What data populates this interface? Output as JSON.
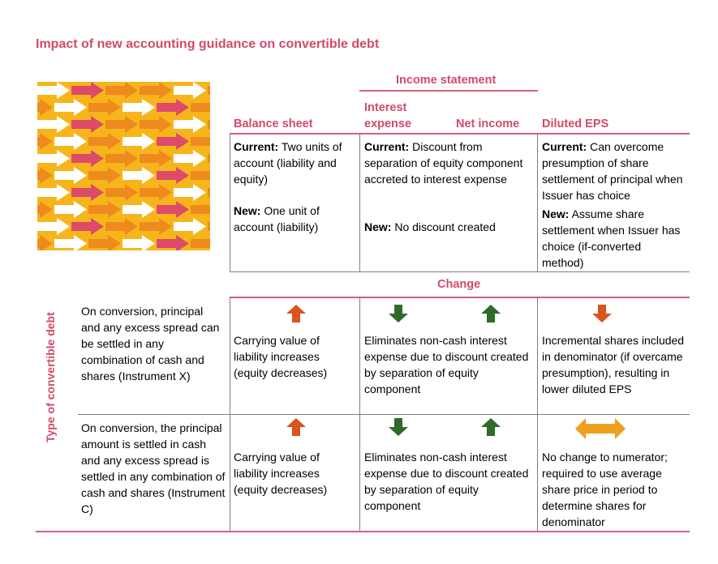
{
  "title": "Impact of new accounting guidance on convertible debt",
  "headers": {
    "income_statement": "Income statement",
    "balance_sheet": "Balance sheet",
    "interest_expense_line1": "Interest",
    "interest_expense_line2": "expense",
    "net_income": "Net income",
    "diluted_eps": "Diluted EPS",
    "change": "Change",
    "type_of_convertible_debt": "Type of convertible debt"
  },
  "current_new": {
    "balance_sheet": {
      "current_label": "Current:",
      "current_text": " Two units of account (liability and equity)",
      "new_label": "New:",
      "new_text": " One unit of account (liability)"
    },
    "income_statement": {
      "current_label": "Current:",
      "current_text": " Discount from separation of equity component accreted to interest expense",
      "new_label": "New:",
      "new_text": " No discount created"
    },
    "diluted_eps": {
      "current_label": "Current:",
      "current_text": " Can overcome presumption of share settlement of principal when Issuer has choice",
      "new_label": "New:",
      "new_text": " Assume share settlement when Issuer has choice (if-converted method)"
    }
  },
  "rows": [
    {
      "description": "On conversion, principal and any excess spread can be settled in any combination of cash and shares (Instrument X)",
      "balance_sheet": "Carrying value of liability increases (equity decreases)",
      "income_statement": "Eliminates non-cash interest expense due to discount created by separation of equity component",
      "diluted_eps": "Incremental shares included in denominator (if overcame presumption), resulting in lower diluted EPS",
      "icons": {
        "balance_sheet": "arrow-up-icon",
        "interest_expense": "arrow-down-icon",
        "net_income": "arrow-up-icon",
        "diluted_eps": "arrow-down-icon"
      }
    },
    {
      "description": "On conversion, the principal amount is settled in cash and any excess spread is settled in any combination of cash and shares (Instrument C)",
      "balance_sheet": "Carrying value of liability increases (equity decreases)",
      "income_statement": "Eliminates non-cash interest expense due to discount created by separation of equity component",
      "diluted_eps": "No change to numerator; required to use average share price in period to determine shares for denominator",
      "icons": {
        "balance_sheet": "arrow-up-icon",
        "interest_expense": "arrow-down-icon",
        "net_income": "arrow-up-icon",
        "diluted_eps": "double-arrow-icon"
      }
    }
  ],
  "colors": {
    "accent_pink": "#d04a6a",
    "arrow_orange": "#d9541e",
    "arrow_green": "#2e6b2a",
    "arrow_amber": "#f0a020",
    "pattern_yellow": "#f7b51c",
    "pattern_orange": "#ee8a1e",
    "pattern_pink": "#dd4a6a",
    "pattern_white": "#ffffff"
  }
}
